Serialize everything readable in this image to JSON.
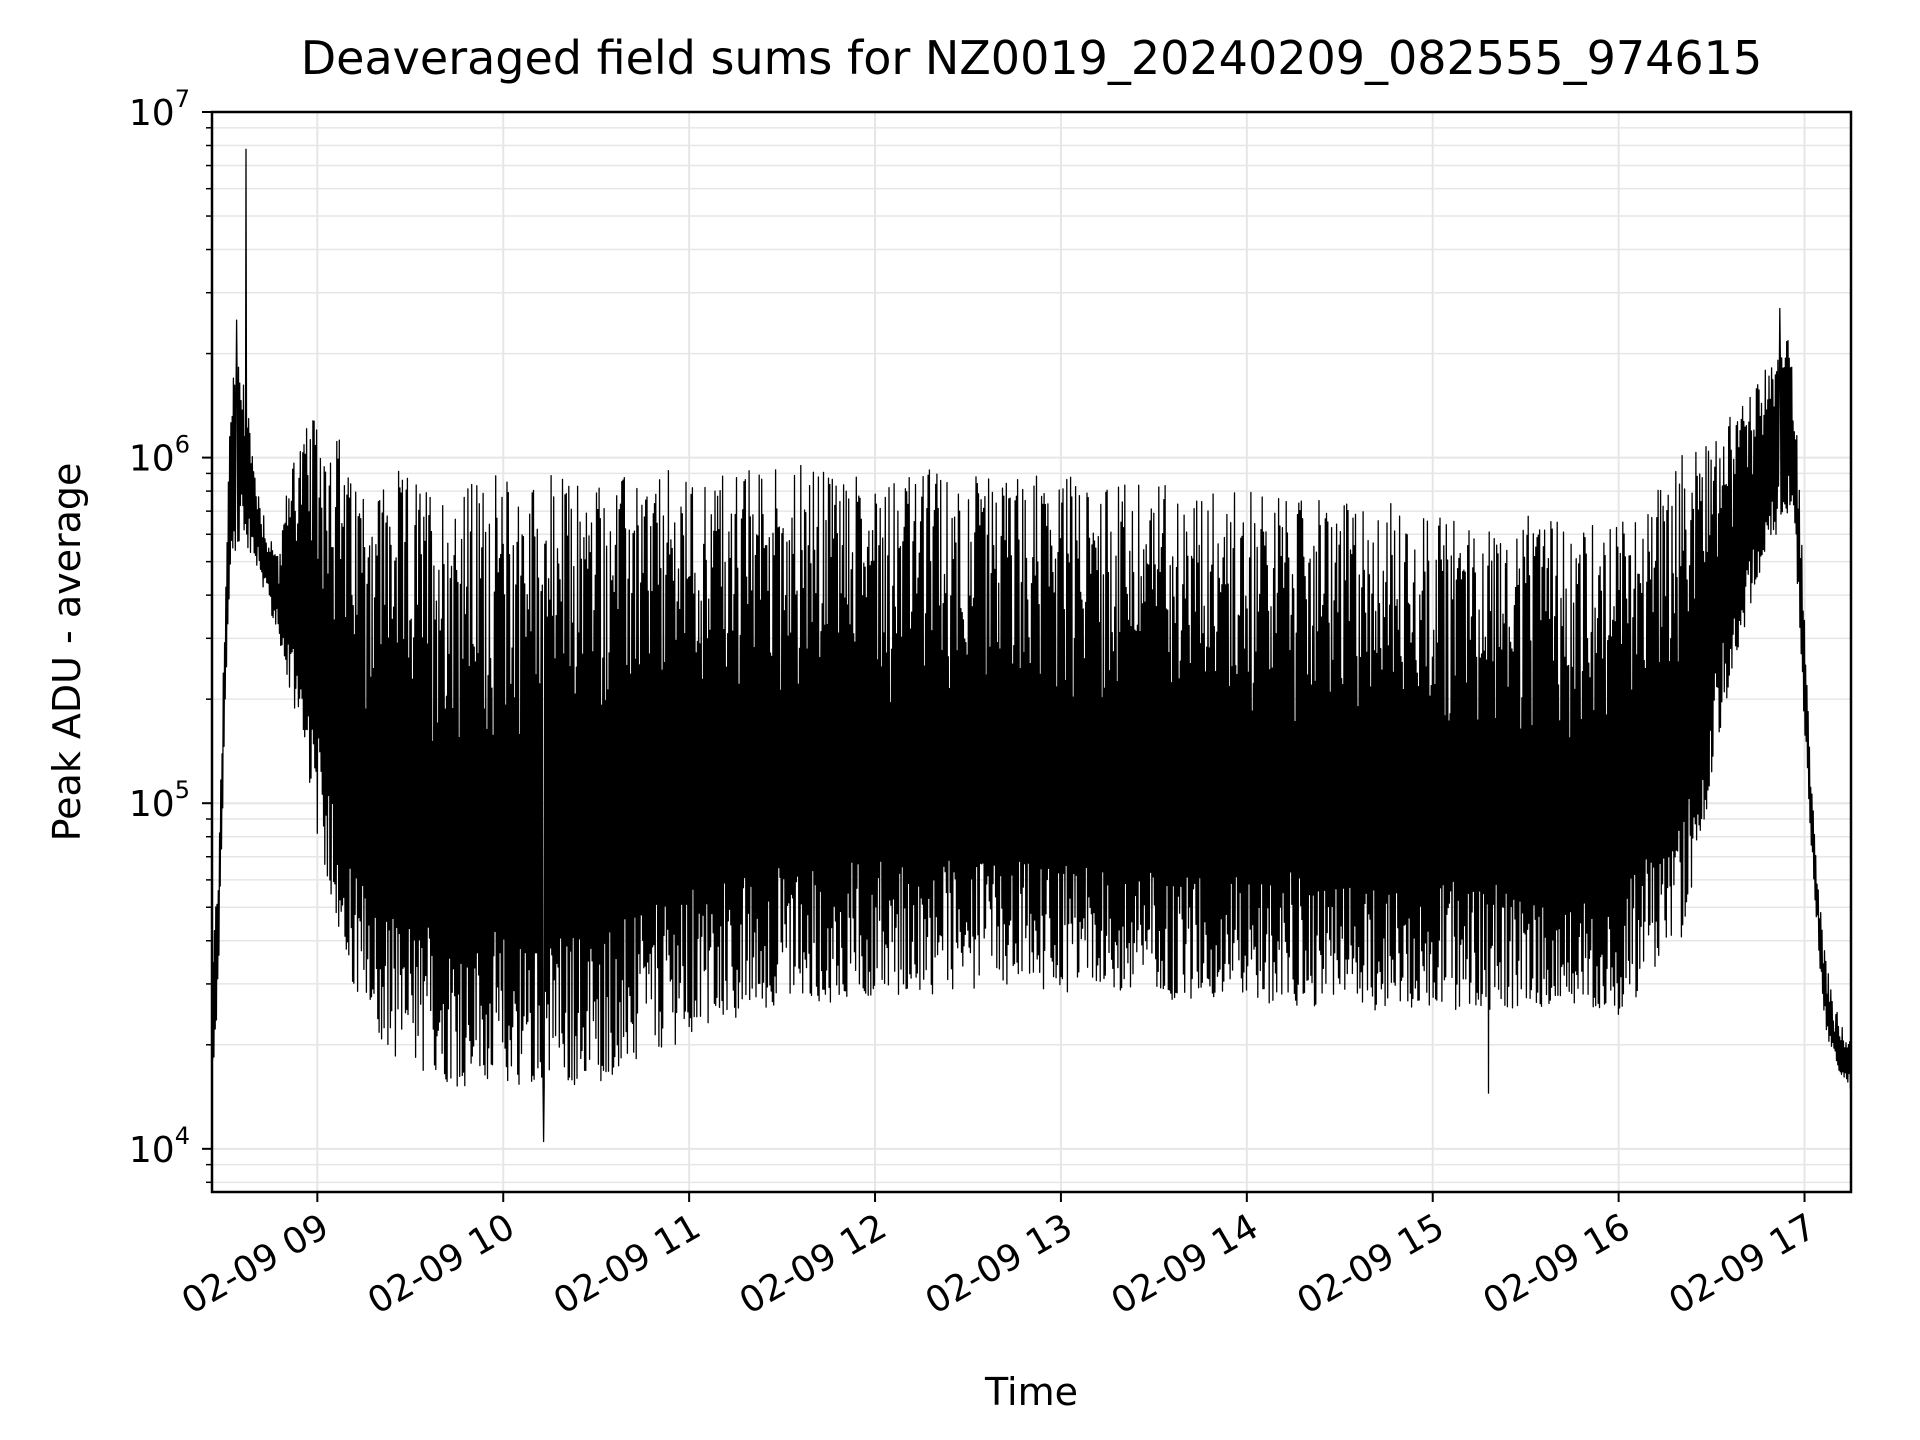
{
  "chart_data": {
    "type": "line",
    "title": "Deaveraged field sums for NZ0019_20240209_082555_974615",
    "xlabel": "Time",
    "ylabel": "Peak ADU - average",
    "y_scale": "log",
    "ylim": [
      7500,
      10000000
    ],
    "xlim": [
      "2024-02-09 08:26",
      "2024-02-09 17:15"
    ],
    "grid": true,
    "x_ticks": [
      "02-09 09",
      "02-09 10",
      "02-09 11",
      "02-09 12",
      "02-09 13",
      "02-09 14",
      "02-09 15",
      "02-09 16",
      "02-09 17"
    ],
    "y_ticks": [
      {
        "base": "10",
        "exp": "4",
        "value": 10000
      },
      {
        "base": "10",
        "exp": "5",
        "value": 100000
      },
      {
        "base": "10",
        "exp": "6",
        "value": 1000000
      },
      {
        "base": "10",
        "exp": "7",
        "value": 10000000
      }
    ],
    "line_color": "#000000",
    "series": [
      {
        "upper_envelope": {
          "x": [
            "2024-02-09 08:26",
            "2024-02-09 08:28",
            "2024-02-09 08:30",
            "2024-02-09 08:32",
            "2024-02-09 08:36",
            "2024-02-09 08:40",
            "2024-02-09 08:44",
            "2024-02-09 08:48",
            "2024-02-09 08:52",
            "2024-02-09 08:56",
            "2024-02-09 09:00",
            "2024-02-09 09:06",
            "2024-02-09 09:10",
            "2024-02-09 09:20",
            "2024-02-09 09:40",
            "2024-02-09 10:00",
            "2024-02-09 10:30",
            "2024-02-09 11:00",
            "2024-02-09 11:30",
            "2024-02-09 12:00",
            "2024-02-09 12:30",
            "2024-02-09 13:00",
            "2024-02-09 13:30",
            "2024-02-09 14:00",
            "2024-02-09 14:30",
            "2024-02-09 15:00",
            "2024-02-09 15:30",
            "2024-02-09 16:00",
            "2024-02-09 16:20",
            "2024-02-09 16:35",
            "2024-02-09 16:45",
            "2024-02-09 16:50",
            "2024-02-09 16:55",
            "2024-02-09 16:57",
            "2024-02-09 16:59",
            "2024-02-09 17:02",
            "2024-02-09 17:06",
            "2024-02-09 17:10",
            "2024-02-09 17:15"
          ],
          "y": [
            30000,
            80000,
            300000,
            1800000,
            1900000,
            900000,
            600000,
            550000,
            1100000,
            1200000,
            1300000,
            1300000,
            900000,
            900000,
            850000,
            880000,
            880000,
            900000,
            950000,
            950000,
            900000,
            880000,
            850000,
            800000,
            750000,
            700000,
            650000,
            650000,
            1000000,
            1300000,
            1600000,
            2000000,
            2300000,
            1500000,
            600000,
            120000,
            40000,
            25000,
            20000
          ]
        },
        "lower_envelope": {
          "x": [
            "2024-02-09 08:26",
            "2024-02-09 08:28",
            "2024-02-09 08:30",
            "2024-02-09 08:32",
            "2024-02-09 08:36",
            "2024-02-09 08:40",
            "2024-02-09 08:44",
            "2024-02-09 08:48",
            "2024-02-09 08:52",
            "2024-02-09 08:56",
            "2024-02-09 09:00",
            "2024-02-09 09:06",
            "2024-02-09 09:10",
            "2024-02-09 09:20",
            "2024-02-09 09:40",
            "2024-02-09 10:00",
            "2024-02-09 10:30",
            "2024-02-09 11:00",
            "2024-02-09 11:30",
            "2024-02-09 12:00",
            "2024-02-09 12:30",
            "2024-02-09 13:00",
            "2024-02-09 13:30",
            "2024-02-09 14:00",
            "2024-02-09 14:30",
            "2024-02-09 15:00",
            "2024-02-09 15:30",
            "2024-02-09 16:00",
            "2024-02-09 16:20",
            "2024-02-09 16:35",
            "2024-02-09 16:45",
            "2024-02-09 16:50",
            "2024-02-09 16:55",
            "2024-02-09 16:57",
            "2024-02-09 16:59",
            "2024-02-09 17:02",
            "2024-02-09 17:06",
            "2024-02-09 17:10",
            "2024-02-09 17:15"
          ],
          "y": [
            15000,
            25000,
            150000,
            500000,
            600000,
            500000,
            400000,
            280000,
            200000,
            150000,
            80000,
            50000,
            30000,
            20000,
            16000,
            15000,
            16000,
            22000,
            27000,
            28000,
            29000,
            29000,
            28000,
            27000,
            26000,
            26000,
            26000,
            25000,
            40000,
            200000,
            450000,
            600000,
            700000,
            600000,
            250000,
            80000,
            25000,
            17000,
            15000
          ]
        },
        "peaks": [
          {
            "x": "2024-02-09 08:37",
            "y": 7800000
          },
          {
            "x": "2024-02-09 08:34",
            "y": 2500000
          },
          {
            "x": "2024-02-09 16:52",
            "y": 2700000
          },
          {
            "x": "2024-02-09 10:13",
            "y": 10500
          },
          {
            "x": "2024-02-09 15:18",
            "y": 14500
          }
        ]
      }
    ]
  }
}
